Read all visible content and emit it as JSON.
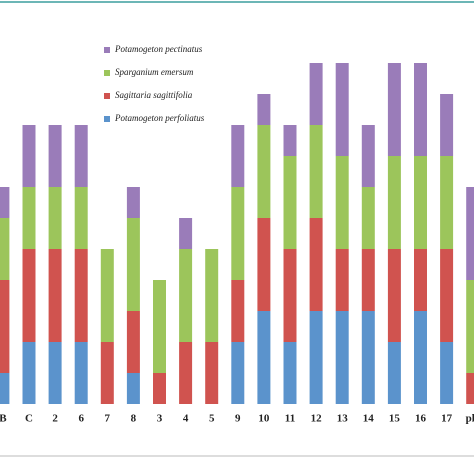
{
  "chart_data": {
    "type": "stacked_bar",
    "categories": [
      "B",
      "C",
      "2",
      "6",
      "7",
      "8",
      "3",
      "4",
      "5",
      "9",
      "10",
      "11",
      "12",
      "13",
      "14",
      "15",
      "16",
      "17",
      "ple"
    ],
    "series": [
      {
        "name": "Potamogeton perfoliatus",
        "color": "#5b93cc",
        "values": [
          1,
          2,
          2,
          2,
          0,
          1,
          0,
          0,
          0,
          2,
          3,
          2,
          3,
          3,
          3,
          2,
          3,
          2,
          0
        ]
      },
      {
        "name": "Sagittaria sagittifolia",
        "color": "#d0534f",
        "values": [
          3,
          3,
          3,
          3,
          2,
          2,
          1,
          2,
          2,
          2,
          3,
          3,
          3,
          2,
          2,
          3,
          2,
          3,
          1
        ]
      },
      {
        "name": "Sparganium emersum",
        "color": "#9cc55b",
        "values": [
          2,
          2,
          2,
          2,
          3,
          3,
          3,
          3,
          3,
          3,
          3,
          3,
          3,
          3,
          2,
          3,
          3,
          3,
          3
        ]
      },
      {
        "name": "Potamogeton pectinatus",
        "color": "#9a7cb9",
        "values": [
          1,
          2,
          2,
          2,
          0,
          1,
          0,
          1,
          0,
          2,
          1,
          1,
          2,
          3,
          2,
          3,
          3,
          2,
          3
        ]
      }
    ],
    "ylim": [
      0,
      11
    ]
  }
}
